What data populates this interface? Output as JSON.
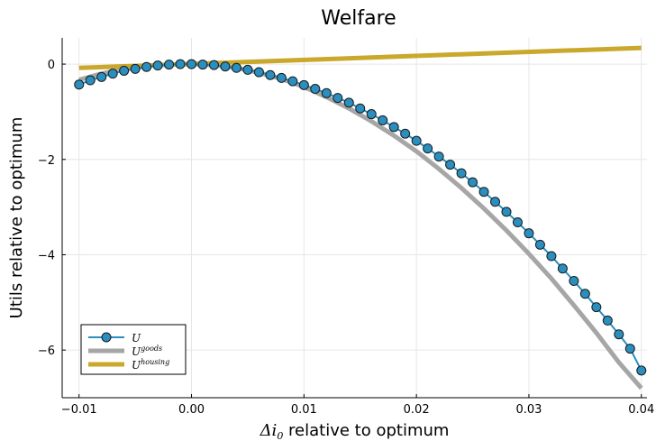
{
  "chart_data": {
    "type": "line",
    "title": "Welfare",
    "xlabel": {
      "math": "Δi",
      "sub": "0",
      "text": " relative to optimum"
    },
    "ylabel": "Utils relative to optimum",
    "xlim": [
      -0.0115,
      0.0405
    ],
    "ylim": [
      -7.0,
      0.55
    ],
    "xticks": [
      {
        "v": -0.01,
        "label": "-0.01"
      },
      {
        "v": 0.0,
        "label": "0.00"
      },
      {
        "v": 0.01,
        "label": "0.01"
      },
      {
        "v": 0.02,
        "label": "0.02"
      },
      {
        "v": 0.03,
        "label": "0.03"
      },
      {
        "v": 0.04,
        "label": "0.04"
      }
    ],
    "yticks": [
      {
        "v": 0,
        "label": "0"
      },
      {
        "v": -2,
        "label": "-2"
      },
      {
        "v": -4,
        "label": "-4"
      },
      {
        "v": -6,
        "label": "-6"
      }
    ],
    "grid": true,
    "legend_position": "bottom-left",
    "series": [
      {
        "name": "U",
        "sup": "",
        "color": "#2a8fbf",
        "marker": "circle",
        "x": [
          -0.01,
          -0.009,
          -0.008,
          -0.007,
          -0.006,
          -0.005,
          -0.004,
          -0.003,
          -0.002,
          -0.001,
          0.0,
          0.001,
          0.002,
          0.003,
          0.004,
          0.005,
          0.006,
          0.007,
          0.008,
          0.009,
          0.01,
          0.011,
          0.012,
          0.013,
          0.014,
          0.015,
          0.016,
          0.017,
          0.018,
          0.019,
          0.02,
          0.021,
          0.022,
          0.023,
          0.024,
          0.025,
          0.026,
          0.027,
          0.028,
          0.029,
          0.03,
          0.031,
          0.032,
          0.033,
          0.034,
          0.035,
          0.036,
          0.037,
          0.038,
          0.039,
          0.04
        ],
        "y": [
          -0.43,
          -0.34,
          -0.27,
          -0.2,
          -0.14,
          -0.1,
          -0.06,
          -0.03,
          -0.01,
          0.0,
          0.0,
          -0.01,
          -0.02,
          -0.05,
          -0.08,
          -0.12,
          -0.17,
          -0.23,
          -0.29,
          -0.36,
          -0.44,
          -0.52,
          -0.61,
          -0.71,
          -0.81,
          -0.93,
          -1.05,
          -1.18,
          -1.32,
          -1.46,
          -1.61,
          -1.77,
          -1.94,
          -2.11,
          -2.29,
          -2.48,
          -2.68,
          -2.89,
          -3.1,
          -3.32,
          -3.55,
          -3.79,
          -4.03,
          -4.29,
          -4.55,
          -4.82,
          -5.1,
          -5.38,
          -5.67,
          -5.97,
          -6.43
        ]
      },
      {
        "name": "U",
        "sup": "goods",
        "color": "#a6a6a6",
        "marker": "none",
        "x": [
          -0.01,
          -0.008,
          -0.006,
          -0.004,
          -0.002,
          0.0,
          0.002,
          0.004,
          0.006,
          0.008,
          0.01,
          0.012,
          0.014,
          0.016,
          0.018,
          0.02,
          0.022,
          0.024,
          0.026,
          0.028,
          0.03,
          0.032,
          0.034,
          0.036,
          0.038,
          0.04
        ],
        "y": [
          -0.33,
          -0.2,
          -0.1,
          -0.04,
          -0.01,
          0.0,
          -0.02,
          -0.08,
          -0.18,
          -0.31,
          -0.48,
          -0.69,
          -0.93,
          -1.2,
          -1.5,
          -1.83,
          -2.2,
          -2.6,
          -3.03,
          -3.49,
          -3.98,
          -4.5,
          -5.06,
          -5.64,
          -6.26,
          -6.8
        ]
      },
      {
        "name": "U",
        "sup": "housing",
        "color": "#c9a82b",
        "marker": "none",
        "x": [
          -0.01,
          0.04
        ],
        "y": [
          -0.08,
          0.34
        ]
      }
    ]
  }
}
